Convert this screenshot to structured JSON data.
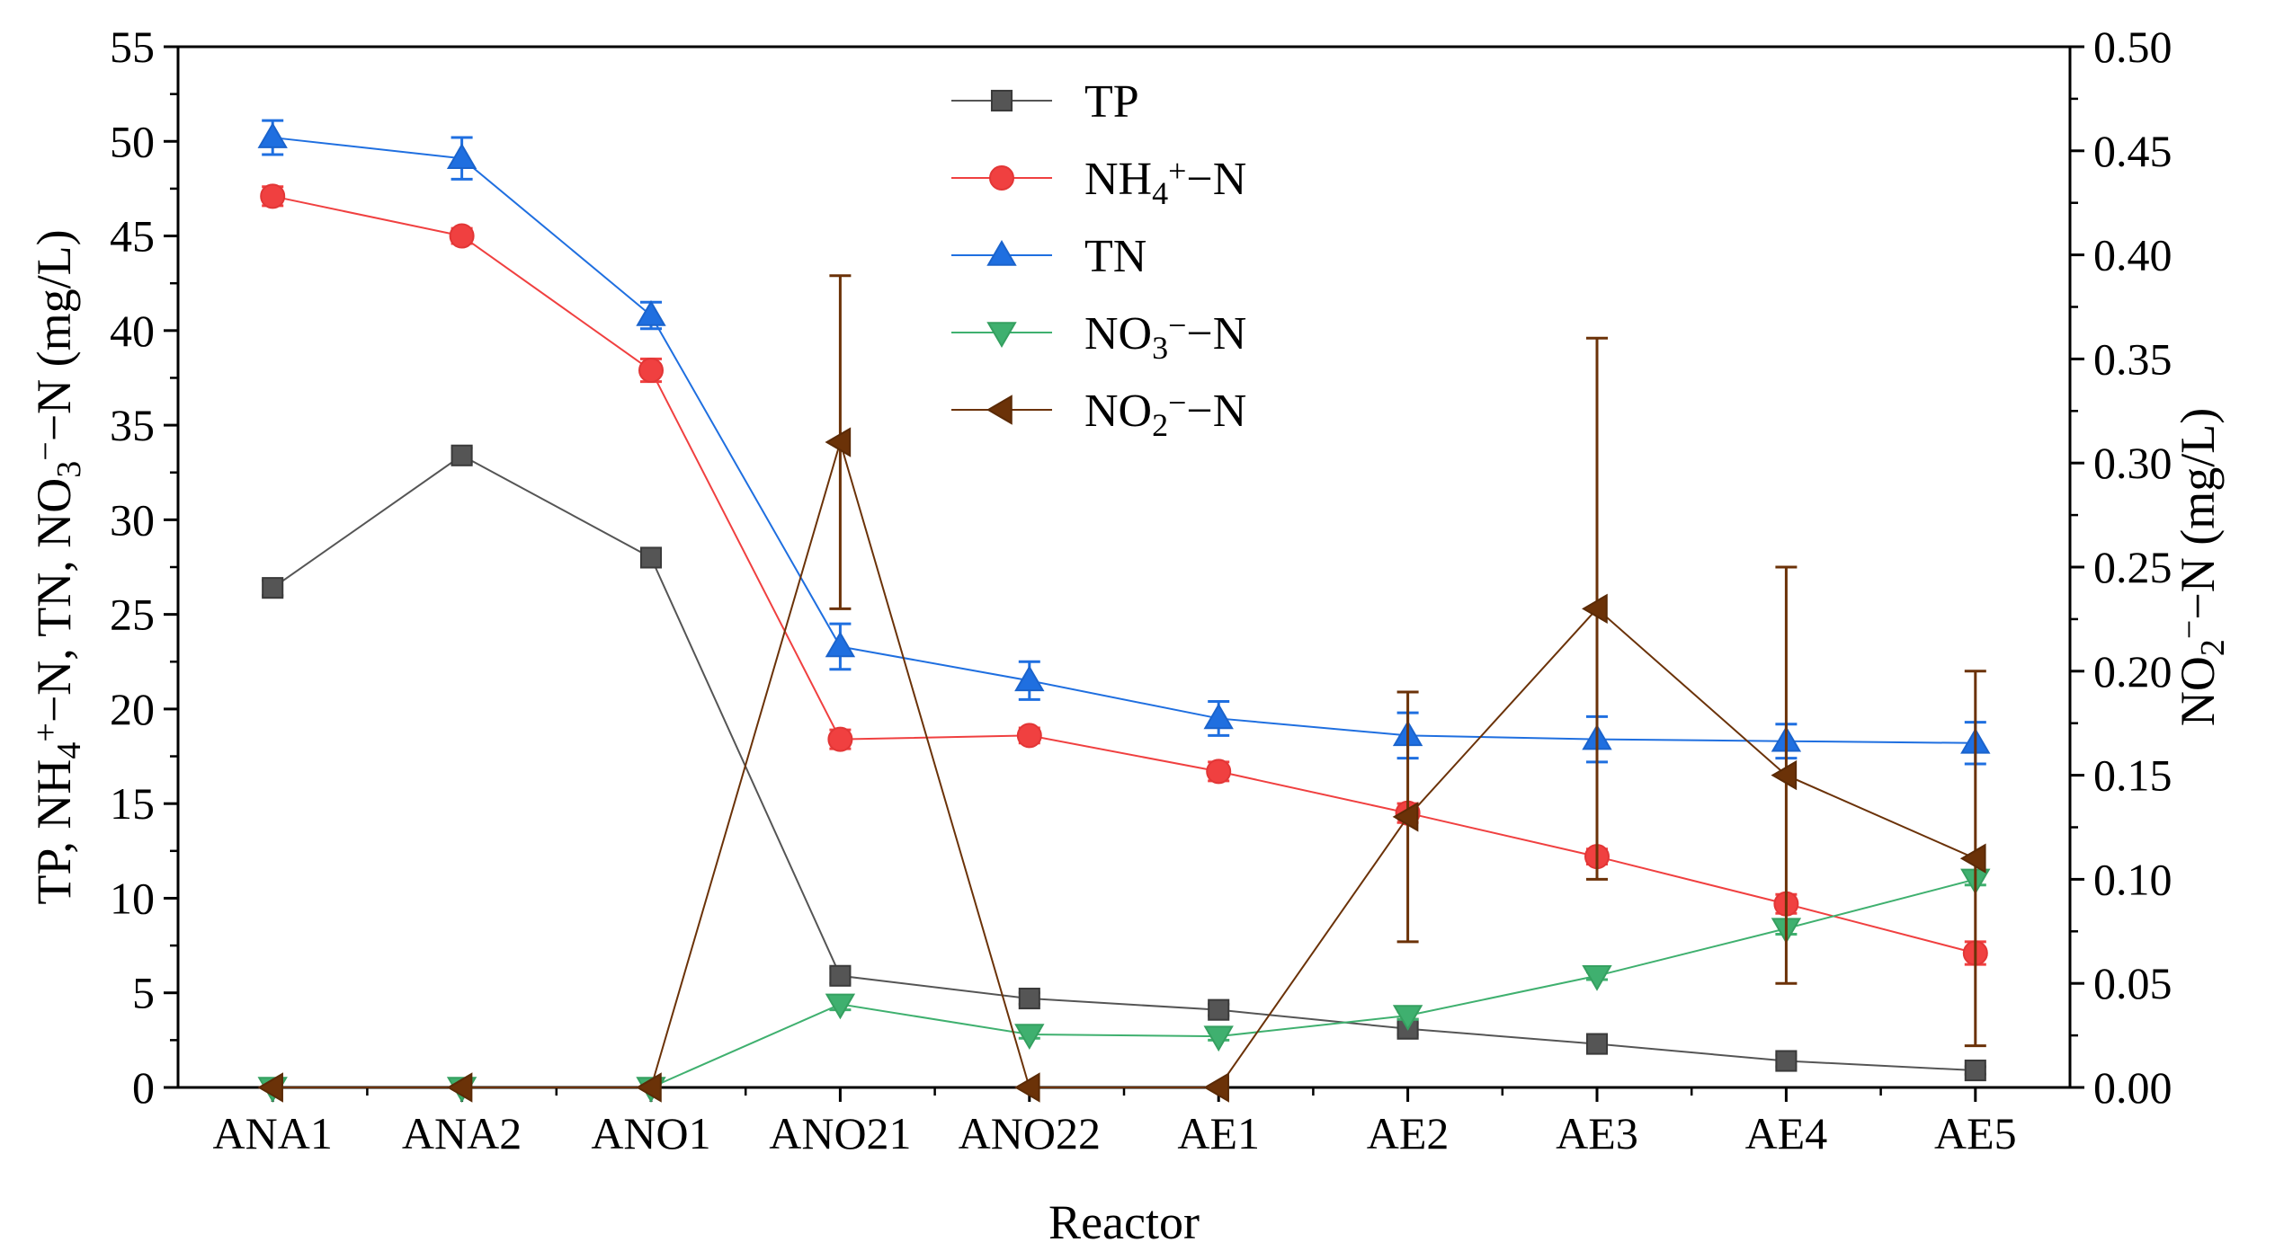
{
  "chart_data": {
    "type": "line",
    "categories": [
      "ANA1",
      "ANA2",
      "ANO1",
      "ANO21",
      "ANO22",
      "AE1",
      "AE2",
      "AE3",
      "AE4",
      "AE5"
    ],
    "xlabel": "Reactor",
    "ylabel_left": {
      "parts": [
        {
          "t": "TP,  NH"
        },
        {
          "t": "4",
          "s": "sub"
        },
        {
          "t": "+",
          "s": "sup"
        },
        {
          "t": "−N,  TN,  NO"
        },
        {
          "t": "3",
          "s": "sub"
        },
        {
          "t": "−",
          "s": "sup"
        },
        {
          "t": "−N (mg/L)"
        }
      ]
    },
    "ylabel_right": {
      "parts": [
        {
          "t": "NO"
        },
        {
          "t": "2",
          "s": "sub"
        },
        {
          "t": "−",
          "s": "sup"
        },
        {
          "t": "−N (mg/L)"
        }
      ]
    },
    "ylim_left": [
      0,
      55
    ],
    "ylim_right": [
      0,
      0.5
    ],
    "yticks_left": [
      "0",
      "5",
      "10",
      "15",
      "20",
      "25",
      "30",
      "35",
      "40",
      "45",
      "50",
      "55"
    ],
    "yticks_right": [
      "0.00",
      "0.05",
      "0.10",
      "0.15",
      "0.20",
      "0.25",
      "0.30",
      "0.35",
      "0.40",
      "0.45",
      "0.50"
    ],
    "legend_position": "top-center",
    "series": [
      {
        "name": "TP",
        "key": "tp",
        "legend": {
          "parts": [
            {
              "t": "TP"
            }
          ]
        },
        "axis": "left",
        "marker": "square",
        "color": "#555555",
        "edge": "#3a3a3a",
        "values": [
          26.4,
          33.4,
          28.0,
          5.9,
          4.7,
          4.1,
          3.1,
          2.3,
          1.4,
          0.9
        ],
        "errors": [
          0.4,
          0.4,
          0.4,
          0.4,
          0.3,
          0.3,
          0.3,
          0.3,
          0.3,
          0.2
        ]
      },
      {
        "name": "NH4+-N",
        "key": "nh4",
        "legend": {
          "parts": [
            {
              "t": "NH"
            },
            {
              "t": "4",
              "s": "sub"
            },
            {
              "t": "+",
              "s": "sup"
            },
            {
              "t": "−N"
            }
          ]
        },
        "axis": "left",
        "marker": "circle",
        "color": "#f04040",
        "edge": "#e23636",
        "values": [
          47.1,
          45.0,
          37.9,
          18.4,
          18.6,
          16.7,
          14.5,
          12.2,
          9.7,
          7.1
        ],
        "errors": [
          0.5,
          0.4,
          0.6,
          0.5,
          0.4,
          0.5,
          0.5,
          0.4,
          0.5,
          0.6
        ]
      },
      {
        "name": "TN",
        "key": "tn",
        "legend": {
          "parts": [
            {
              "t": "TN"
            }
          ]
        },
        "axis": "left",
        "marker": "triangle-up",
        "color": "#1f6fe0",
        "edge": "#1a63cc",
        "values": [
          50.2,
          49.1,
          40.8,
          23.3,
          21.5,
          19.5,
          18.6,
          18.4,
          18.3,
          18.2
        ],
        "errors": [
          0.9,
          1.1,
          0.7,
          1.2,
          1.0,
          0.9,
          1.2,
          1.2,
          0.9,
          1.1
        ]
      },
      {
        "name": "NO3--N",
        "key": "no3",
        "legend": {
          "parts": [
            {
              "t": "NO"
            },
            {
              "t": "3",
              "s": "sub"
            },
            {
              "t": "−",
              "s": "sup"
            },
            {
              "t": "−N"
            }
          ]
        },
        "axis": "left",
        "marker": "triangle-down",
        "color": "#3fb06f",
        "edge": "#35a060",
        "values": [
          0.0,
          0.0,
          0.0,
          4.4,
          2.8,
          2.7,
          3.8,
          5.9,
          8.4,
          11.0
        ],
        "errors": [
          0,
          0,
          0,
          0.3,
          0.2,
          0.2,
          0.2,
          0.2,
          0.3,
          0.3
        ]
      },
      {
        "name": "NO2--N",
        "key": "no2",
        "legend": {
          "parts": [
            {
              "t": "NO"
            },
            {
              "t": "2",
              "s": "sub"
            },
            {
              "t": "−",
              "s": "sup"
            },
            {
              "t": "−N"
            }
          ]
        },
        "axis": "right",
        "marker": "triangle-left",
        "color": "#6b3208",
        "edge": "#5a2a06",
        "values": [
          0.0,
          0.0,
          0.0,
          0.31,
          0.0,
          0.0,
          0.13,
          0.23,
          0.15,
          0.11
        ],
        "errors": [
          0,
          0,
          0,
          0.08,
          0,
          0,
          0.06,
          0.13,
          0.1,
          0.09
        ]
      }
    ]
  }
}
